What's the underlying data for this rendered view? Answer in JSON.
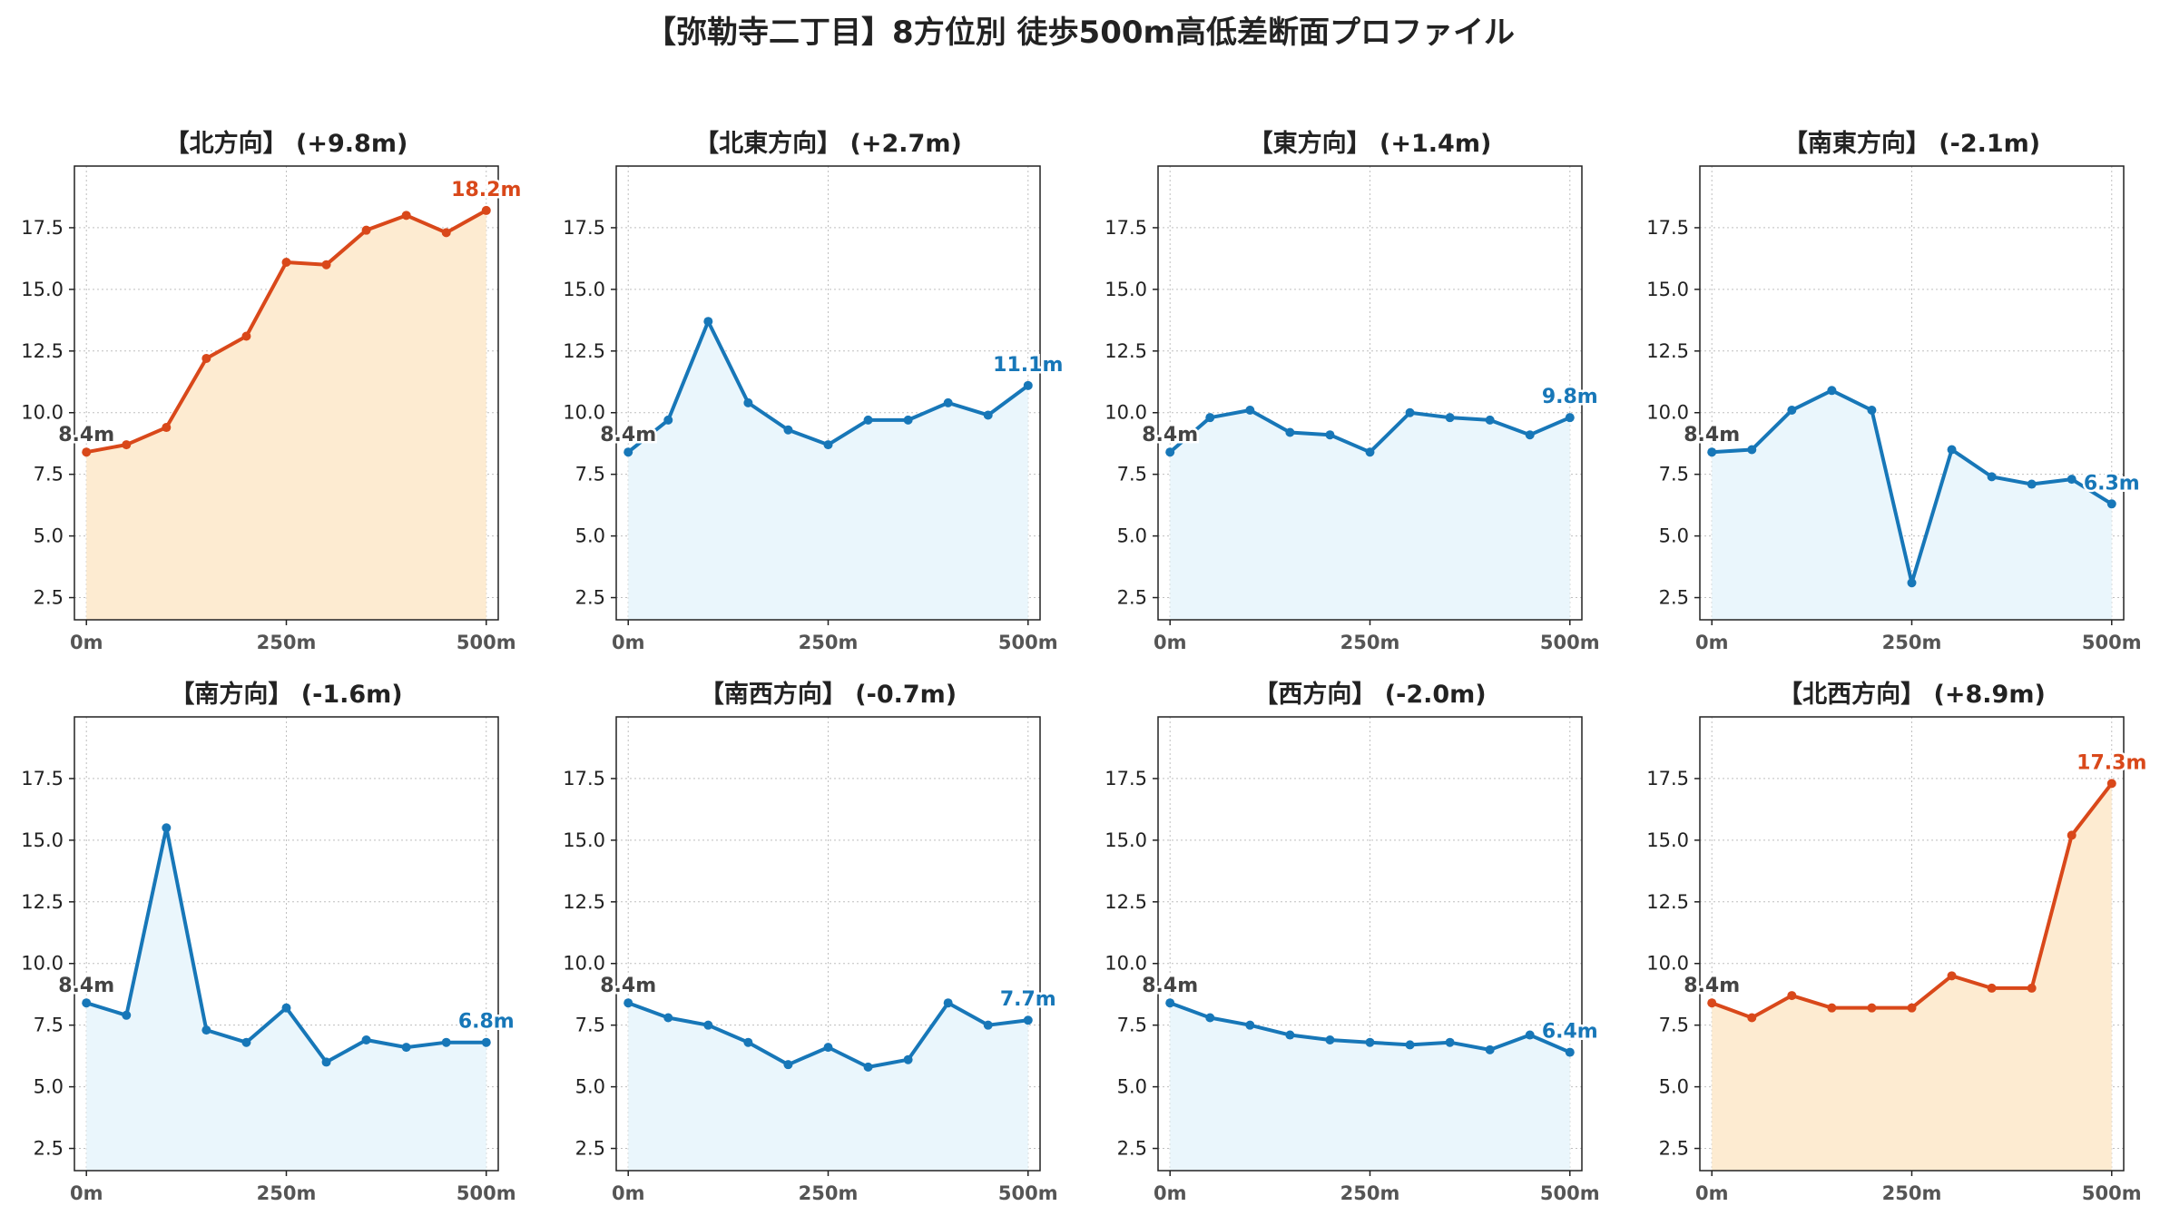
{
  "figure_title": "【弥勒寺二丁目】8方位別 徒歩500m高低差断面プロファイル",
  "colors": {
    "uphill_line": "#D9481A",
    "uphill_fill": "#FDEBD1",
    "normal_line": "#1777B8",
    "normal_fill": "#EAF6FC",
    "start_label": "#444444",
    "axis": "#222222",
    "grid": "#BFBFBF",
    "tick_text": "#555555",
    "subtitle_text": "#222222"
  },
  "chart_data": [
    {
      "type": "line",
      "title": "【北方向】 (+9.8m)",
      "variant": "uphill",
      "x": [
        0,
        50,
        100,
        150,
        200,
        250,
        300,
        350,
        400,
        450,
        500
      ],
      "values": [
        8.4,
        8.7,
        9.4,
        12.2,
        13.1,
        16.1,
        16.0,
        17.4,
        18.0,
        17.3,
        18.2
      ],
      "start_label": "8.4m",
      "end_label": "18.2m",
      "xticks": [
        "0m",
        "250m",
        "500m"
      ],
      "yticks": [
        "2.5",
        "5.0",
        "7.5",
        "10.0",
        "12.5",
        "15.0",
        "17.5"
      ],
      "xlim": [
        -15,
        515
      ],
      "ylim": [
        1.6,
        20.0
      ],
      "grid": true
    },
    {
      "type": "line",
      "title": "【北東方向】 (+2.7m)",
      "variant": "normal",
      "x": [
        0,
        50,
        100,
        150,
        200,
        250,
        300,
        350,
        400,
        450,
        500
      ],
      "values": [
        8.4,
        9.7,
        13.7,
        10.4,
        9.3,
        8.7,
        9.7,
        9.7,
        10.4,
        9.9,
        11.1
      ],
      "start_label": "8.4m",
      "end_label": "11.1m",
      "xticks": [
        "0m",
        "250m",
        "500m"
      ],
      "yticks": [
        "2.5",
        "5.0",
        "7.5",
        "10.0",
        "12.5",
        "15.0",
        "17.5"
      ],
      "xlim": [
        -15,
        515
      ],
      "ylim": [
        1.6,
        20.0
      ],
      "grid": true
    },
    {
      "type": "line",
      "title": "【東方向】 (+1.4m)",
      "variant": "normal",
      "x": [
        0,
        50,
        100,
        150,
        200,
        250,
        300,
        350,
        400,
        450,
        500
      ],
      "values": [
        8.4,
        9.8,
        10.1,
        9.2,
        9.1,
        8.4,
        10.0,
        9.8,
        9.7,
        9.1,
        9.8
      ],
      "start_label": "8.4m",
      "end_label": "9.8m",
      "xticks": [
        "0m",
        "250m",
        "500m"
      ],
      "yticks": [
        "2.5",
        "5.0",
        "7.5",
        "10.0",
        "12.5",
        "15.0",
        "17.5"
      ],
      "xlim": [
        -15,
        515
      ],
      "ylim": [
        1.6,
        20.0
      ],
      "grid": true
    },
    {
      "type": "line",
      "title": "【南東方向】 (-2.1m)",
      "variant": "normal",
      "x": [
        0,
        50,
        100,
        150,
        200,
        250,
        300,
        350,
        400,
        450,
        500
      ],
      "values": [
        8.4,
        8.5,
        10.1,
        10.9,
        10.1,
        3.1,
        8.5,
        7.4,
        7.1,
        7.3,
        6.3
      ],
      "start_label": "8.4m",
      "end_label": "6.3m",
      "xticks": [
        "0m",
        "250m",
        "500m"
      ],
      "yticks": [
        "2.5",
        "5.0",
        "7.5",
        "10.0",
        "12.5",
        "15.0",
        "17.5"
      ],
      "xlim": [
        -15,
        515
      ],
      "ylim": [
        1.6,
        20.0
      ],
      "grid": true
    },
    {
      "type": "line",
      "title": "【南方向】 (-1.6m)",
      "variant": "normal",
      "x": [
        0,
        50,
        100,
        150,
        200,
        250,
        300,
        350,
        400,
        450,
        500
      ],
      "values": [
        8.4,
        7.9,
        15.5,
        7.3,
        6.8,
        8.2,
        6.0,
        6.9,
        6.6,
        6.8,
        6.8
      ],
      "start_label": "8.4m",
      "end_label": "6.8m",
      "xticks": [
        "0m",
        "250m",
        "500m"
      ],
      "yticks": [
        "2.5",
        "5.0",
        "7.5",
        "10.0",
        "12.5",
        "15.0",
        "17.5"
      ],
      "xlim": [
        -15,
        515
      ],
      "ylim": [
        1.6,
        20.0
      ],
      "grid": true
    },
    {
      "type": "line",
      "title": "【南西方向】 (-0.7m)",
      "variant": "normal",
      "x": [
        0,
        50,
        100,
        150,
        200,
        250,
        300,
        350,
        400,
        450,
        500
      ],
      "values": [
        8.4,
        7.8,
        7.5,
        6.8,
        5.9,
        6.6,
        5.8,
        6.1,
        8.4,
        7.5,
        7.7
      ],
      "start_label": "8.4m",
      "end_label": "7.7m",
      "xticks": [
        "0m",
        "250m",
        "500m"
      ],
      "yticks": [
        "2.5",
        "5.0",
        "7.5",
        "10.0",
        "12.5",
        "15.0",
        "17.5"
      ],
      "xlim": [
        -15,
        515
      ],
      "ylim": [
        1.6,
        20.0
      ],
      "grid": true
    },
    {
      "type": "line",
      "title": "【西方向】 (-2.0m)",
      "variant": "normal",
      "x": [
        0,
        50,
        100,
        150,
        200,
        250,
        300,
        350,
        400,
        450,
        500
      ],
      "values": [
        8.4,
        7.8,
        7.5,
        7.1,
        6.9,
        6.8,
        6.7,
        6.8,
        6.5,
        7.1,
        6.4
      ],
      "start_label": "8.4m",
      "end_label": "6.4m",
      "xticks": [
        "0m",
        "250m",
        "500m"
      ],
      "yticks": [
        "2.5",
        "5.0",
        "7.5",
        "10.0",
        "12.5",
        "15.0",
        "17.5"
      ],
      "xlim": [
        -15,
        515
      ],
      "ylim": [
        1.6,
        20.0
      ],
      "grid": true
    },
    {
      "type": "line",
      "title": "【北西方向】 (+8.9m)",
      "variant": "uphill",
      "x": [
        0,
        50,
        100,
        150,
        200,
        250,
        300,
        350,
        400,
        450,
        500
      ],
      "values": [
        8.4,
        7.8,
        8.7,
        8.2,
        8.2,
        8.2,
        9.5,
        9.0,
        9.0,
        15.2,
        17.3
      ],
      "start_label": "8.4m",
      "end_label": "17.3m",
      "xticks": [
        "0m",
        "250m",
        "500m"
      ],
      "yticks": [
        "2.5",
        "5.0",
        "7.5",
        "10.0",
        "12.5",
        "15.0",
        "17.5"
      ],
      "xlim": [
        -15,
        515
      ],
      "ylim": [
        1.6,
        20.0
      ],
      "grid": true
    }
  ]
}
